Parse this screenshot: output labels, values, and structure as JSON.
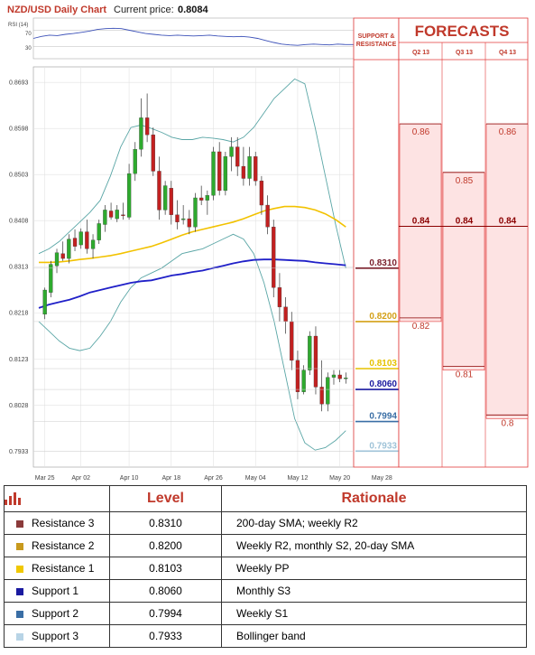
{
  "header": {
    "title": "NZD/USD Daily Chart",
    "price_label": "Current price:",
    "price_value": "0.8084"
  },
  "rsi": {
    "label": "RSI (14)",
    "levels": [
      "70",
      "30"
    ]
  },
  "chart_data": [
    {
      "type": "candlestick",
      "y_ticks": [
        "0.8693",
        "0.8598",
        "0.8503",
        "0.8408",
        "0.8313",
        "0.8218",
        "0.8123",
        "0.8028",
        "0.7933"
      ],
      "ylim": [
        0.79,
        0.8725
      ],
      "x_ticks": [
        "Mar 25",
        "Apr 02",
        "Apr 10",
        "Apr 18",
        "Apr 26",
        "May 04",
        "May 12",
        "May 20",
        "May 28"
      ],
      "x_tick_index": [
        1,
        7,
        15,
        22,
        29,
        36,
        43,
        50,
        57
      ],
      "candles": [
        [
          0.8215,
          0.827,
          0.8205,
          0.8265
        ],
        [
          0.826,
          0.8325,
          0.825,
          0.8318
        ],
        [
          0.8315,
          0.835,
          0.83,
          0.8342
        ],
        [
          0.834,
          0.8365,
          0.8325,
          0.833
        ],
        [
          0.833,
          0.838,
          0.832,
          0.837
        ],
        [
          0.8372,
          0.839,
          0.8345,
          0.8355
        ],
        [
          0.8358,
          0.8392,
          0.835,
          0.8385
        ],
        [
          0.8385,
          0.841,
          0.834,
          0.835
        ],
        [
          0.835,
          0.838,
          0.833,
          0.8368
        ],
        [
          0.8368,
          0.841,
          0.836,
          0.8402
        ],
        [
          0.84,
          0.844,
          0.8385,
          0.843
        ],
        [
          0.8428,
          0.8445,
          0.841,
          0.8415
        ],
        [
          0.8412,
          0.844,
          0.8405,
          0.843
        ],
        [
          0.842,
          0.8445,
          0.841,
          0.8418
        ],
        [
          0.8415,
          0.8525,
          0.841,
          0.8505
        ],
        [
          0.8505,
          0.857,
          0.849,
          0.8555
        ],
        [
          0.8555,
          0.866,
          0.854,
          0.862
        ],
        [
          0.862,
          0.867,
          0.857,
          0.8585
        ],
        [
          0.8585,
          0.86,
          0.85,
          0.851
        ],
        [
          0.851,
          0.854,
          0.841,
          0.843
        ],
        [
          0.843,
          0.849,
          0.842,
          0.848
        ],
        [
          0.8475,
          0.849,
          0.84,
          0.842
        ],
        [
          0.842,
          0.845,
          0.839,
          0.8405
        ],
        [
          0.841,
          0.844,
          0.84,
          0.8412
        ],
        [
          0.8412,
          0.843,
          0.838,
          0.8395
        ],
        [
          0.8395,
          0.8465,
          0.8385,
          0.8455
        ],
        [
          0.8455,
          0.848,
          0.844,
          0.845
        ],
        [
          0.845,
          0.847,
          0.842,
          0.846
        ],
        [
          0.846,
          0.856,
          0.845,
          0.855
        ],
        [
          0.855,
          0.857,
          0.846,
          0.847
        ],
        [
          0.847,
          0.855,
          0.846,
          0.854
        ],
        [
          0.854,
          0.858,
          0.851,
          0.856
        ],
        [
          0.856,
          0.858,
          0.85,
          0.852
        ],
        [
          0.852,
          0.856,
          0.848,
          0.8495
        ],
        [
          0.8495,
          0.856,
          0.848,
          0.854
        ],
        [
          0.854,
          0.855,
          0.848,
          0.849
        ],
        [
          0.849,
          0.85,
          0.842,
          0.844
        ],
        [
          0.844,
          0.846,
          0.838,
          0.8395
        ],
        [
          0.8395,
          0.841,
          0.825,
          0.827
        ],
        [
          0.827,
          0.83,
          0.82,
          0.823
        ],
        [
          0.823,
          0.825,
          0.8175,
          0.82
        ],
        [
          0.82,
          0.822,
          0.81,
          0.812
        ],
        [
          0.812,
          0.814,
          0.804,
          0.8055
        ],
        [
          0.8055,
          0.811,
          0.805,
          0.81
        ],
        [
          0.81,
          0.818,
          0.809,
          0.817
        ],
        [
          0.817,
          0.819,
          0.805,
          0.8065
        ],
        [
          0.8065,
          0.812,
          0.8015,
          0.803
        ],
        [
          0.803,
          0.8095,
          0.8015,
          0.8085
        ],
        [
          0.8085,
          0.81,
          0.807,
          0.809
        ],
        [
          0.809,
          0.81,
          0.8075,
          0.8082
        ],
        [
          0.8082,
          0.8095,
          0.8072,
          0.8084
        ]
      ],
      "sma20": [
        0.834,
        0.834,
        0.8335,
        0.8335,
        0.8338,
        0.8345,
        0.8352,
        0.836,
        0.8372,
        0.8385,
        0.8398,
        0.841,
        0.8422,
        0.8432,
        0.844,
        0.845,
        0.8455,
        0.846,
        0.847,
        0.8468,
        0.8455,
        0.843,
        0.8395,
        0.835,
        0.831,
        0.829,
        0.8275,
        0.826,
        0.824,
        0.821,
        0.8175
      ],
      "sma20_start": 20,
      "sma50": [
        0.8322,
        0.8322,
        0.8323,
        0.8325,
        0.8328,
        0.833,
        0.8333,
        0.8336,
        0.834,
        0.8345,
        0.835,
        0.8355,
        0.8362,
        0.837,
        0.8378,
        0.8385,
        0.839,
        0.8395,
        0.84,
        0.8405,
        0.8412,
        0.842,
        0.8428,
        0.8433,
        0.8437,
        0.8437,
        0.8435,
        0.843,
        0.8422,
        0.841,
        0.8395
      ],
      "sma200": [
        0.8228,
        0.8235,
        0.824,
        0.8245,
        0.8252,
        0.826,
        0.8265,
        0.827,
        0.8275,
        0.828,
        0.8283,
        0.8285,
        0.829,
        0.8295,
        0.8298,
        0.8302,
        0.8305,
        0.831,
        0.8315,
        0.832,
        0.8324,
        0.8327,
        0.8328,
        0.8328,
        0.8327,
        0.8326,
        0.8325,
        0.8322,
        0.832,
        0.8318,
        0.8316
      ],
      "bb_upper": [
        0.834,
        0.835,
        0.8365,
        0.8385,
        0.8405,
        0.8425,
        0.845,
        0.85,
        0.856,
        0.86,
        0.8605,
        0.8598,
        0.859,
        0.858,
        0.8575,
        0.8575,
        0.858,
        0.8578,
        0.8575,
        0.857,
        0.858,
        0.86,
        0.863,
        0.866,
        0.868,
        0.87,
        0.869,
        0.86,
        0.85,
        0.84,
        0.831
      ],
      "bb_lower": [
        0.82,
        0.818,
        0.816,
        0.8145,
        0.814,
        0.8145,
        0.817,
        0.82,
        0.824,
        0.827,
        0.829,
        0.83,
        0.831,
        0.8325,
        0.834,
        0.8345,
        0.835,
        0.836,
        0.837,
        0.838,
        0.837,
        0.834,
        0.828,
        0.82,
        0.81,
        0.8,
        0.795,
        0.7935,
        0.794,
        0.7955,
        0.7975
      ]
    }
  ],
  "rsi_values": [
    50,
    55,
    58,
    57,
    60,
    62,
    65,
    68,
    72,
    74,
    75,
    74,
    70,
    66,
    62,
    60,
    58,
    57,
    58,
    57,
    56,
    57,
    58,
    56,
    55,
    54,
    55,
    53,
    50,
    45,
    40,
    36,
    34,
    33,
    35,
    36,
    35,
    34,
    36,
    35,
    35
  ],
  "levels": [
    {
      "value": "0.8310",
      "color": "#7a1f2b"
    },
    {
      "value": "0.8200",
      "color": "#d4a017"
    },
    {
      "value": "0.8103",
      "color": "#e6c200"
    },
    {
      "value": "0.8060",
      "color": "#1a1aa0"
    },
    {
      "value": "0.7994",
      "color": "#3a6ea5"
    },
    {
      "value": "0.7933",
      "color": "#9fc3d8"
    }
  ],
  "sr_title": [
    "SUPPORT &",
    "RESISTANCE"
  ],
  "forecasts": {
    "title": "FORECASTS",
    "quarters": [
      "Q2 13",
      "Q3 13",
      "Q4 13"
    ],
    "values": [
      {
        "q": 0,
        "v": "0.86",
        "bold": false
      },
      {
        "q": 0,
        "v": "0.84",
        "bold": true
      },
      {
        "q": 0,
        "v": "0.82",
        "bold": false
      },
      {
        "q": 1,
        "v": "0.85",
        "bold": false
      },
      {
        "q": 1,
        "v": "0.84",
        "bold": true
      },
      {
        "q": 1,
        "v": "0.81",
        "bold": false
      },
      {
        "q": 2,
        "v": "0.86",
        "bold": false
      },
      {
        "q": 2,
        "v": "0.84",
        "bold": true
      },
      {
        "q": 2,
        "v": "0.8",
        "bold": false
      }
    ]
  },
  "table": {
    "head": {
      "level": "Level",
      "rationale": "Rationale"
    },
    "rows": [
      {
        "name": "Resistance 3",
        "level": "0.8310",
        "rationale": "200-day SMA; weekly R2",
        "color": "#8b3a3a"
      },
      {
        "name": "Resistance 2",
        "level": "0.8200",
        "rationale": "Weekly R2, monthly S2, 20-day SMA",
        "color": "#c89a1e"
      },
      {
        "name": "Resistance 1",
        "level": "0.8103",
        "rationale": "Weekly PP",
        "color": "#f0c800"
      },
      {
        "name": "Support 1",
        "level": "0.8060",
        "rationale": "Monthly S3",
        "color": "#1a1aa0"
      },
      {
        "name": "Support 2",
        "level": "0.7994",
        "rationale": "Weekly S1",
        "color": "#3a6ea5"
      },
      {
        "name": "Support 3",
        "level": "0.7933",
        "rationale": "Bollinger band",
        "color": "#b8d4e6"
      }
    ]
  }
}
